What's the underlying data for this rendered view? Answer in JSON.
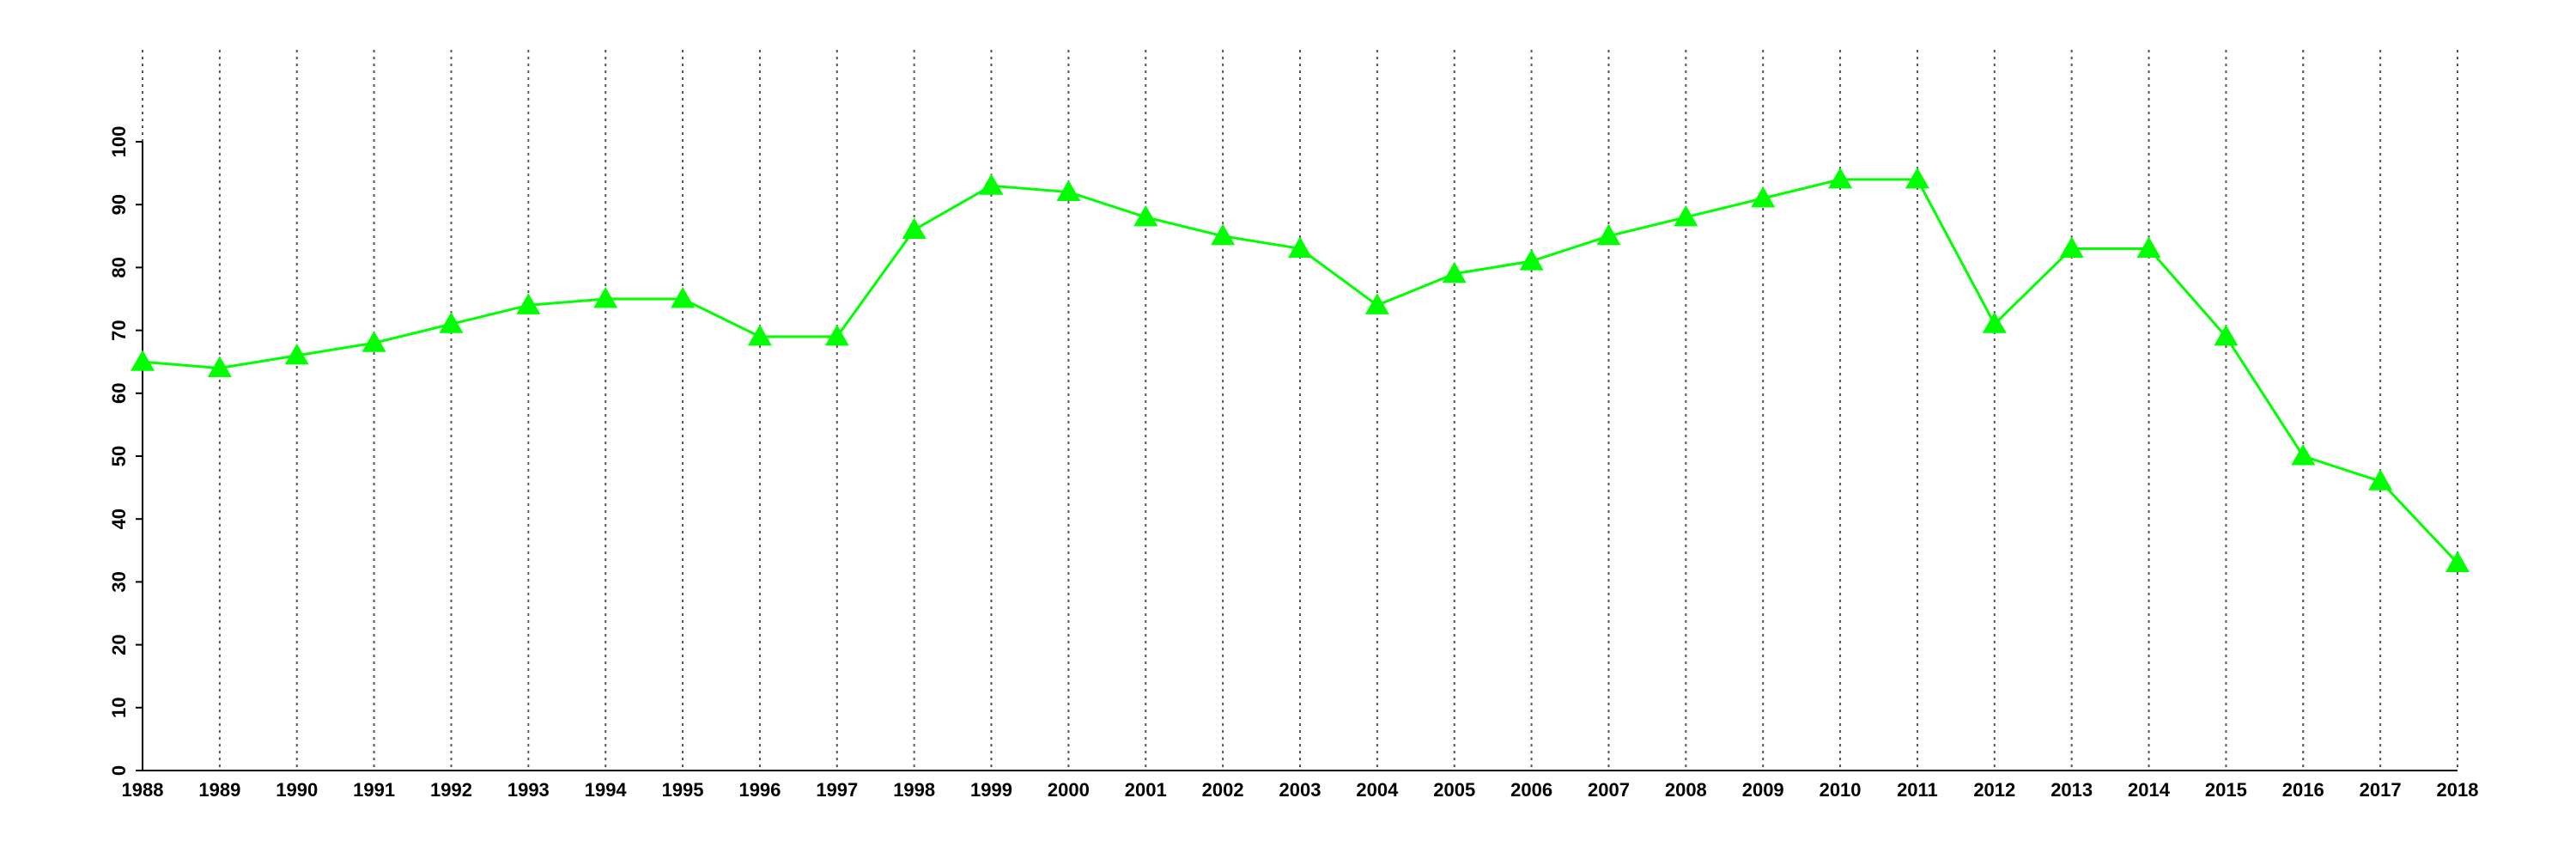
{
  "chart_data": {
    "type": "line",
    "color": "#00ff00",
    "marker": "triangle",
    "grid_x": true,
    "x": [
      1988,
      1989,
      1990,
      1991,
      1992,
      1993,
      1994,
      1995,
      1996,
      1997,
      1998,
      1999,
      2000,
      2001,
      2002,
      2003,
      2004,
      2005,
      2006,
      2007,
      2008,
      2009,
      2010,
      2011,
      2012,
      2013,
      2014,
      2015,
      2016,
      2017,
      2018
    ],
    "values": [
      65,
      64,
      66,
      68,
      71,
      74,
      75,
      75,
      69,
      69,
      86,
      93,
      92,
      88,
      85,
      83,
      74,
      79,
      81,
      85,
      88,
      91,
      94,
      94,
      71,
      83,
      83,
      69,
      50,
      46,
      33
    ],
    "xlim": [
      1988,
      2018
    ],
    "xticks": [
      1988,
      1989,
      1990,
      1991,
      1992,
      1993,
      1994,
      1995,
      1996,
      1997,
      1998,
      1999,
      2000,
      2001,
      2002,
      2003,
      2004,
      2005,
      2006,
      2007,
      2008,
      2009,
      2010,
      2011,
      2012,
      2013,
      2014,
      2015,
      2016,
      2017,
      2018
    ],
    "ylim": [
      0,
      100
    ],
    "yticks": [
      0,
      10,
      20,
      30,
      40,
      50,
      60,
      70,
      80,
      90,
      100
    ]
  }
}
